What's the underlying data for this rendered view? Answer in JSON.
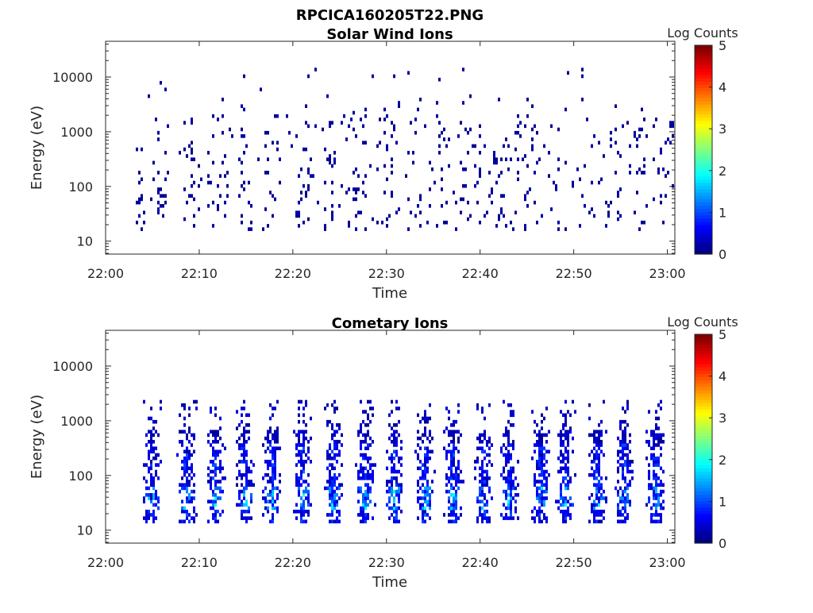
{
  "figure_title": "RPCICA160205T22.PNG",
  "chart_data": [
    {
      "type": "heatmap",
      "title": "Solar Wind Ions",
      "xlabel": "Time",
      "ylabel": "Energy (eV)",
      "x_ticks": [
        "22:00",
        "22:10",
        "22:20",
        "22:30",
        "22:40",
        "22:50",
        "23:00"
      ],
      "x_range_minutes": [
        0,
        60.8
      ],
      "y_scale": "log",
      "y_ticks": [
        "10",
        "100",
        "1000",
        "10000"
      ],
      "y_tick_values": [
        10,
        100,
        1000,
        10000
      ],
      "y_range": [
        5.8,
        45000
      ],
      "colorbar": {
        "label": "Log Counts",
        "ticks": [
          "0",
          "1",
          "2",
          "3",
          "4",
          "5"
        ],
        "range": [
          0,
          5
        ],
        "colormap": "jet"
      },
      "data_minutes": [
        3.2,
        60.5
      ],
      "pattern": "sparse",
      "typical_log_counts": 0.05
    },
    {
      "type": "heatmap",
      "title": "Cometary Ions",
      "xlabel": "Time",
      "ylabel": "Energy (eV)",
      "x_ticks": [
        "22:00",
        "22:10",
        "22:20",
        "22:30",
        "22:40",
        "22:50",
        "23:00"
      ],
      "x_range_minutes": [
        0,
        60.8
      ],
      "y_scale": "log",
      "y_ticks": [
        "10",
        "100",
        "1000",
        "10000"
      ],
      "y_tick_values": [
        10,
        100,
        1000,
        10000
      ],
      "y_range": [
        5.8,
        45000
      ],
      "colorbar": {
        "label": "Log Counts",
        "ticks": [
          "0",
          "1",
          "2",
          "3",
          "4",
          "5"
        ],
        "range": [
          0,
          5
        ],
        "colormap": "jet"
      },
      "data_minutes": [
        3.2,
        60.5
      ],
      "pattern": "periodic-bursts",
      "burst_centers_minutes": [
        4.8,
        8.6,
        11.6,
        14.8,
        17.6,
        21.0,
        24.2,
        27.6,
        30.8,
        34.0,
        37.0,
        40.2,
        43.0,
        46.4,
        49.0,
        52.4,
        55.2,
        58.6
      ],
      "peak_log_counts": 1.8
    }
  ]
}
